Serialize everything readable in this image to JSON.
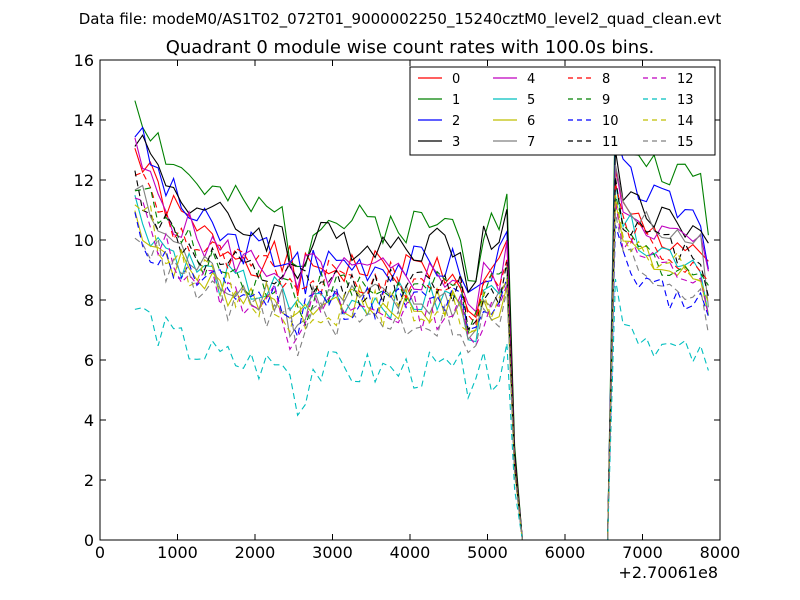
{
  "figure": {
    "suptitle": "Data file: modeM0/AS1T02_072T01_9000002250_15240cztM0_level2_quad_clean.evt"
  },
  "chart_data": {
    "type": "line",
    "title": "Quadrant 0 module wise count rates with 100.0s bins.",
    "xlabel": "",
    "ylabel": "",
    "x_offset_label": "+2.70061e8",
    "xlim": [
      0,
      8000
    ],
    "ylim": [
      0,
      16
    ],
    "xticks": [
      0,
      1000,
      2000,
      3000,
      4000,
      5000,
      6000,
      7000,
      8000
    ],
    "yticks": [
      0,
      2,
      4,
      6,
      8,
      10,
      12,
      14,
      16
    ],
    "grid": false,
    "legend_position": "top-right",
    "legend_columns": 4,
    "segments": [
      {
        "x": [
          450,
          5250
        ],
        "n": 49
      },
      {
        "x": [
          5350,
          6550
        ],
        "n": 13
      },
      {
        "x": [
          6650,
          7850
        ],
        "n": 13
      }
    ],
    "series": [
      {
        "name": "0",
        "color": "#ff0000",
        "dash": "solid",
        "base": 9.0,
        "start": 13.0,
        "dip": 7.6,
        "post": 11.0,
        "seed": 1
      },
      {
        "name": "1",
        "color": "#008000",
        "dash": "solid",
        "base": 10.5,
        "start": 14.8,
        "dip": 9.0,
        "post": 13.3,
        "seed": 2
      },
      {
        "name": "2",
        "color": "#0000ff",
        "dash": "solid",
        "base": 9.2,
        "start": 13.8,
        "dip": 8.2,
        "post": 12.2,
        "seed": 3
      },
      {
        "name": "3",
        "color": "#000000",
        "dash": "solid",
        "base": 9.9,
        "start": 13.7,
        "dip": 8.6,
        "post": 11.7,
        "seed": 4
      },
      {
        "name": "4",
        "color": "#bf00bf",
        "dash": "solid",
        "base": 8.8,
        "start": 12.9,
        "dip": 7.8,
        "post": 11.2,
        "seed": 5
      },
      {
        "name": "5",
        "color": "#00bfbf",
        "dash": "solid",
        "base": 8.0,
        "start": 11.2,
        "dip": 7.0,
        "post": 10.6,
        "seed": 6
      },
      {
        "name": "6",
        "color": "#bfbf00",
        "dash": "solid",
        "base": 7.8,
        "start": 10.9,
        "dip": 6.8,
        "post": 10.0,
        "seed": 7
      },
      {
        "name": "7",
        "color": "#808080",
        "dash": "solid",
        "base": 7.9,
        "start": 11.8,
        "dip": 7.0,
        "post": 11.2,
        "seed": 8
      },
      {
        "name": "8",
        "color": "#ff0000",
        "dash": "dashed",
        "base": 8.6,
        "start": 12.5,
        "dip": 7.4,
        "post": 10.6,
        "seed": 9
      },
      {
        "name": "9",
        "color": "#008000",
        "dash": "dashed",
        "base": 8.3,
        "start": 12.2,
        "dip": 7.2,
        "post": 10.2,
        "seed": 10
      },
      {
        "name": "10",
        "color": "#0000ff",
        "dash": "dashed",
        "base": 7.9,
        "start": 10.4,
        "dip": 6.9,
        "post": 9.2,
        "seed": 11
      },
      {
        "name": "11",
        "color": "#000000",
        "dash": "dashed",
        "base": 8.4,
        "start": 12.0,
        "dip": 7.3,
        "post": 10.8,
        "seed": 12
      },
      {
        "name": "12",
        "color": "#bf00bf",
        "dash": "dashed",
        "base": 7.6,
        "start": 11.3,
        "dip": 6.7,
        "post": 10.0,
        "seed": 13
      },
      {
        "name": "13",
        "color": "#00bfbf",
        "dash": "dashed",
        "base": 5.6,
        "start": 7.8,
        "dip": 5.0,
        "post": 7.4,
        "seed": 14
      },
      {
        "name": "14",
        "color": "#bfbf00",
        "dash": "dashed",
        "base": 7.7,
        "start": 11.5,
        "dip": 6.8,
        "post": 10.2,
        "seed": 15
      },
      {
        "name": "15",
        "color": "#808080",
        "dash": "dashed",
        "base": 7.3,
        "start": 10.6,
        "dip": 6.5,
        "post": 9.6,
        "seed": 16
      }
    ]
  }
}
